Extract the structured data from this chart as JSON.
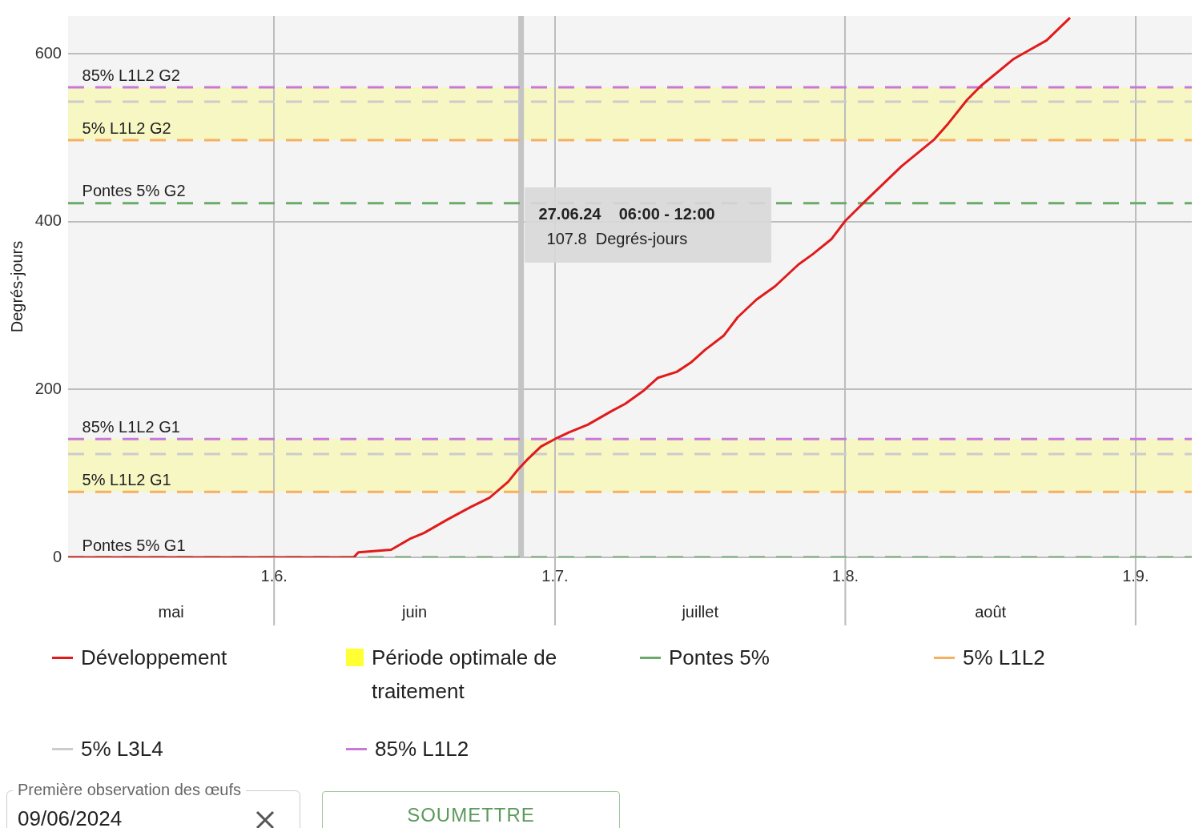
{
  "chart_data": {
    "type": "line",
    "ylabel": "Degrés-jours",
    "xlim": [
      "2024-05-10",
      "2024-09-07"
    ],
    "xticks": [
      {
        "value": "2024-06-01",
        "label": "1.6."
      },
      {
        "value": "2024-07-01",
        "label": "1.7."
      },
      {
        "value": "2024-08-01",
        "label": "1.8."
      },
      {
        "value": "2024-09-01",
        "label": "1.9."
      }
    ],
    "ylim": [
      0,
      645
    ],
    "yticks": [
      0,
      200,
      400,
      600
    ],
    "grid": true,
    "legend": "bottom",
    "series": [
      {
        "name": "Développement",
        "color": "#e01b1b",
        "x": [
          "2024-05-10",
          "2024-06-09T12:00",
          "2024-06-10",
          "2024-06-13T12:00",
          "2024-06-15T12:00",
          "2024-06-17",
          "2024-06-19T12:00",
          "2024-06-22",
          "2024-06-24",
          "2024-06-26",
          "2024-06-27",
          "2024-06-28",
          "2024-06-29T12:00",
          "2024-07-01",
          "2024-07-02T12:00",
          "2024-07-04T12:00",
          "2024-07-07",
          "2024-07-08T12:00",
          "2024-07-10T12:00",
          "2024-07-12",
          "2024-07-14",
          "2024-07-15T12:00",
          "2024-07-17",
          "2024-07-19",
          "2024-07-20T12:00",
          "2024-07-22T12:00",
          "2024-07-24T12:00",
          "2024-07-27",
          "2024-07-28T12:00",
          "2024-07-30T12:00",
          "2024-08-01",
          "2024-08-03",
          "2024-08-07",
          "2024-08-10T12:00",
          "2024-08-12",
          "2024-08-14",
          "2024-08-15T12:00",
          "2024-08-19",
          "2024-08-22T12:00",
          "2024-08-25"
        ],
        "values": [
          0,
          0,
          6,
          9,
          22,
          29,
          45,
          60,
          71,
          90,
          104,
          116,
          132,
          141,
          149,
          158,
          174,
          183,
          199,
          214,
          221,
          232,
          247,
          264,
          286,
          307,
          323,
          349,
          361,
          379,
          401,
          423,
          466,
          498,
          517,
          545,
          562,
          594,
          616,
          643
        ]
      },
      {
        "name": "Pontes 5%",
        "color": "#6aaa6a",
        "line_style": "dashed",
        "x": [
          "2024-05-10",
          "2024-09-07"
        ],
        "values": [
          0,
          0
        ]
      },
      {
        "color": "#6aaa6a",
        "line_style": "dashed",
        "x": [
          "2024-05-10",
          "2024-09-07"
        ],
        "values": [
          422,
          422
        ]
      },
      {
        "name": "5% L1L2",
        "color": "#f5b060",
        "line_style": "dashed",
        "x": [
          "2024-05-10",
          "2024-09-07"
        ],
        "values": [
          78,
          78
        ]
      },
      {
        "color": "#f5b060",
        "line_style": "dashed",
        "x": [
          "2024-05-10",
          "2024-09-07"
        ],
        "values": [
          497,
          497
        ]
      },
      {
        "name": "5% L3L4",
        "color": "#cccccc",
        "line_style": "dashed",
        "x": [
          "2024-05-10",
          "2024-09-07"
        ],
        "values": [
          123,
          123
        ]
      },
      {
        "color": "#cccccc",
        "line_style": "dashed",
        "x": [
          "2024-05-10",
          "2024-09-07"
        ],
        "values": [
          543,
          543
        ]
      },
      {
        "name": "85% L1L2",
        "color": "#c878d8",
        "line_style": "dashed",
        "x": [
          "2024-05-10",
          "2024-09-07"
        ],
        "values": [
          141,
          141
        ]
      },
      {
        "color": "#c878d8",
        "line_style": "dashed",
        "x": [
          "2024-05-10",
          "2024-09-07"
        ],
        "values": [
          560,
          560
        ]
      }
    ],
    "bands": [
      {
        "axis": "y",
        "from": 78,
        "to": 141,
        "label": "Période optimale de traitement",
        "color": "#ffff33"
      },
      {
        "axis": "y",
        "from": 497,
        "to": 560,
        "color": "#ffff33"
      }
    ],
    "ref_lines": [
      {
        "axis": "x",
        "value": "2024-06-27T09:00",
        "label": "27.06.24    06:00 - 12:00\n107.8  Degrés-jours",
        "color": "#c4c4c4"
      }
    ],
    "annotations": [
      {
        "text": "85% L1L2 G2",
        "x": "2024-05-11T12:00",
        "y": 560
      },
      {
        "text": "5% L1L2 G2",
        "x": "2024-05-11T12:00",
        "y": 497
      },
      {
        "text": "Pontes 5% G2",
        "x": "2024-05-11T12:00",
        "y": 422
      },
      {
        "text": "85% L1L2 G1",
        "x": "2024-05-11T12:00",
        "y": 141
      },
      {
        "text": "5% L1L2 G1",
        "x": "2024-05-11T12:00",
        "y": 78
      },
      {
        "text": "Pontes 5% G1",
        "x": "2024-05-11T12:00",
        "y": 0
      },
      "mai",
      "juin",
      "juillet",
      "août",
      "Première observation des œufs",
      "09/06/2024",
      "SOUMETTRE"
    ]
  }
}
